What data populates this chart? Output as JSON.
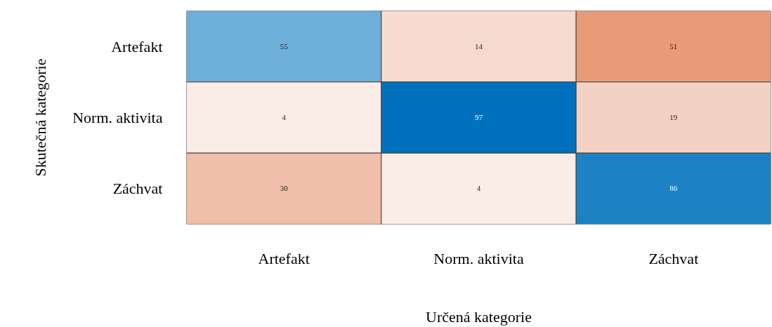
{
  "chart_data": {
    "type": "heatmap",
    "xlabel": "Určená kategorie",
    "ylabel": "Skutečná kategorie",
    "categories": [
      "Artefakt",
      "Norm. aktivita",
      "Záchvat"
    ],
    "y_categories": [
      "Artefakt",
      "Norm. aktivita",
      "Záchvat"
    ],
    "cells": [
      [
        55,
        14,
        51
      ],
      [
        4,
        97,
        19
      ],
      [
        30,
        4,
        86
      ]
    ],
    "data_labels": true
  }
}
